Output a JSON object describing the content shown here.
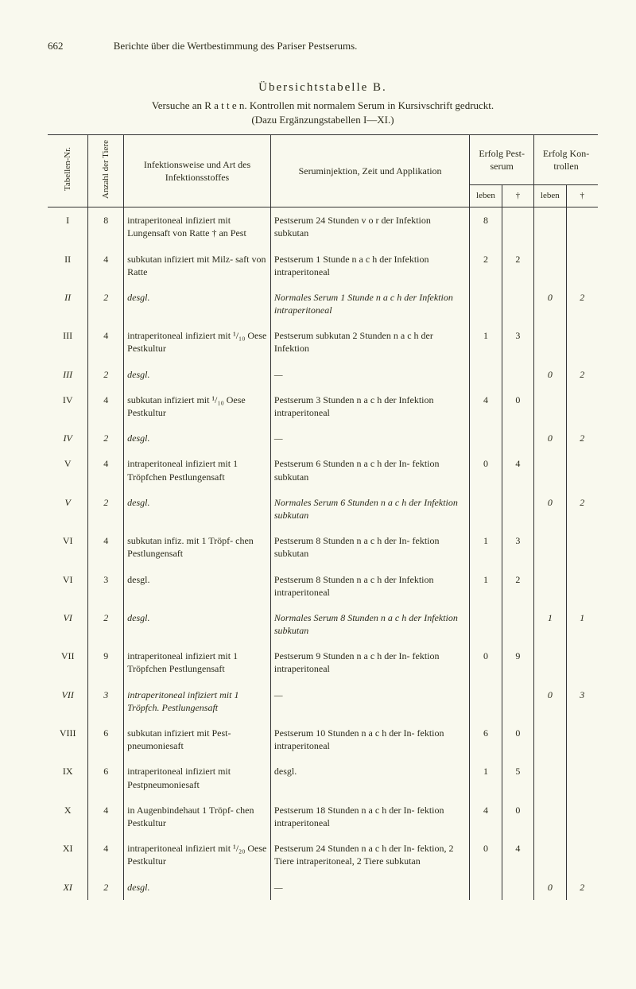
{
  "page_number": "662",
  "running_title": "Berichte über die Wertbestimmung des Pariser Pestserums.",
  "table_title": "Übersichtstabelle B.",
  "versuche_line": "Versuche an R a t t e n.  Kontrollen mit normalem Serum in Kursivschrift gedruckt.",
  "subcaption": "(Dazu Ergänzungstabellen I—XI.)",
  "headers": {
    "tabellen_nr": "Tabellen-Nr.",
    "anzahl": "Anzahl der Tiere",
    "infektionsweise": "Infektionsweise und Art des Infektionsstoffes",
    "seruminjektion": "Seruminjektion, Zeit und Applikation",
    "erfolg_pest": "Erfolg Pest- serum",
    "erfolg_kon": "Erfolg Kon- trollen",
    "leben": "leben",
    "tot": "†"
  },
  "rows": [
    {
      "nr": "I",
      "anz": "8",
      "art": "intraperitoneal infiziert mit Lungensaft von Ratte † an Pest",
      "serum": "Pestserum 24 Stunden v o r der Infektion subkutan",
      "pl": "8",
      "pt": "",
      "kl": "",
      "kt": "",
      "italic": false
    },
    {
      "nr": "II",
      "anz": "4",
      "art": "subkutan infiziert mit Milz- saft von Ratte",
      "serum": "Pestserum 1 Stunde n a c h der Infektion intraperitoneal",
      "pl": "2",
      "pt": "2",
      "kl": "",
      "kt": "",
      "italic": false
    },
    {
      "nr": "II",
      "anz": "2",
      "art": "desgl.",
      "serum": "Normales Serum 1 Stunde n a c h der Infektion intraperitoneal",
      "pl": "",
      "pt": "",
      "kl": "0",
      "kt": "2",
      "italic": true
    },
    {
      "nr": "III",
      "anz": "4",
      "art": "intraperitoneal infiziert mit ¹/₁₀ Oese Pestkultur",
      "serum": "Pestserum subkutan 2 Stunden n a c h der Infektion",
      "pl": "1",
      "pt": "3",
      "kl": "",
      "kt": "",
      "italic": false
    },
    {
      "nr": "III",
      "anz": "2",
      "art": "desgl.",
      "serum": "—",
      "pl": "",
      "pt": "",
      "kl": "0",
      "kt": "2",
      "italic": true
    },
    {
      "nr": "IV",
      "anz": "4",
      "art": "subkutan infiziert mit ¹/₁₀ Oese Pestkultur",
      "serum": "Pestserum 3 Stunden n a c h der Infektion intraperitoneal",
      "pl": "4",
      "pt": "0",
      "kl": "",
      "kt": "",
      "italic": false
    },
    {
      "nr": "IV",
      "anz": "2",
      "art": "desgl.",
      "serum": "—",
      "pl": "",
      "pt": "",
      "kl": "0",
      "kt": "2",
      "italic": true
    },
    {
      "nr": "V",
      "anz": "4",
      "art": "intraperitoneal infiziert mit 1 Tröpfchen Pestlungensaft",
      "serum": "Pestserum 6 Stunden n a c h der In- fektion subkutan",
      "pl": "0",
      "pt": "4",
      "kl": "",
      "kt": "",
      "italic": false
    },
    {
      "nr": "V",
      "anz": "2",
      "art": "desgl.",
      "serum": "Normales Serum 6 Stunden n a c h der Infektion subkutan",
      "pl": "",
      "pt": "",
      "kl": "0",
      "kt": "2",
      "italic": true
    },
    {
      "nr": "VI",
      "anz": "4",
      "art": "subkutan infiz. mit 1 Tröpf- chen Pestlungensaft",
      "serum": "Pestserum 8 Stunden n a c h der In- fektion subkutan",
      "pl": "1",
      "pt": "3",
      "kl": "",
      "kt": "",
      "italic": false
    },
    {
      "nr": "VI",
      "anz": "3",
      "art": "desgl.",
      "serum": "Pestserum 8 Stunden n a c h der Infektion intraperitoneal",
      "pl": "1",
      "pt": "2",
      "kl": "",
      "kt": "",
      "italic": false
    },
    {
      "nr": "VI",
      "anz": "2",
      "art": "desgl.",
      "serum": "Normales Serum 8 Stunden n a c h der Infektion subkutan",
      "pl": "",
      "pt": "",
      "kl": "1",
      "kt": "1",
      "italic": true
    },
    {
      "nr": "VII",
      "anz": "9",
      "art": "intraperitoneal infiziert mit 1 Tröpfchen Pestlungensaft",
      "serum": "Pestserum 9 Stunden n a c h der In- fektion intraperitoneal",
      "pl": "0",
      "pt": "9",
      "kl": "",
      "kt": "",
      "italic": false
    },
    {
      "nr": "VII",
      "anz": "3",
      "art": "intraperitoneal infiziert mit 1 Tröpfch. Pestlungensaft",
      "serum": "—",
      "pl": "",
      "pt": "",
      "kl": "0",
      "kt": "3",
      "italic": true
    },
    {
      "nr": "VIII",
      "anz": "6",
      "art": "subkutan infiziert mit Pest- pneumoniesaft",
      "serum": "Pestserum 10 Stunden n a c h der In- fektion intraperitoneal",
      "pl": "6",
      "pt": "0",
      "kl": "",
      "kt": "",
      "italic": false
    },
    {
      "nr": "IX",
      "anz": "6",
      "art": "intraperitoneal infiziert mit Pestpneumoniesaft",
      "serum": "desgl.",
      "pl": "1",
      "pt": "5",
      "kl": "",
      "kt": "",
      "italic": false
    },
    {
      "nr": "X",
      "anz": "4",
      "art": "in Augenbindehaut 1 Tröpf- chen Pestkultur",
      "serum": "Pestserum 18 Stunden n a c h der In- fektion intraperitoneal",
      "pl": "4",
      "pt": "0",
      "kl": "",
      "kt": "",
      "italic": false
    },
    {
      "nr": "XI",
      "anz": "4",
      "art": "intraperitoneal infiziert mit ¹/₂₀ Oese Pestkultur",
      "serum": "Pestserum 24 Stunden n a c h der In- fektion, 2 Tiere intraperitoneal, 2 Tiere subkutan",
      "pl": "0",
      "pt": "4",
      "kl": "",
      "kt": "",
      "italic": false
    },
    {
      "nr": "XI",
      "anz": "2",
      "art": "desgl.",
      "serum": "—",
      "pl": "",
      "pt": "",
      "kl": "0",
      "kt": "2",
      "italic": true
    }
  ]
}
